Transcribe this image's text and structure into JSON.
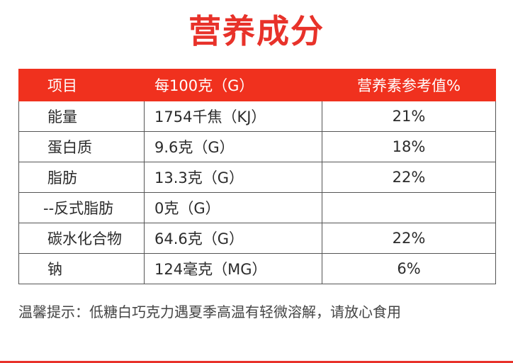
{
  "title": "营养成分",
  "table": {
    "headers": [
      "项目",
      "每100克（G）",
      "营养素参考值%"
    ],
    "rows": [
      {
        "item": "能量",
        "per100g": "1754千焦（KJ）",
        "nrv": "21%"
      },
      {
        "item": "蛋白质",
        "per100g": "9.6克（G）",
        "nrv": "18%"
      },
      {
        "item": "脂肪",
        "per100g": "13.3克（G）",
        "nrv": "22%"
      },
      {
        "item": "--反式脂肪",
        "per100g": "0克（G）",
        "nrv": ""
      },
      {
        "item": "碳水化合物",
        "per100g": "64.6克（G）",
        "nrv": "22%"
      },
      {
        "item": "钠",
        "per100g": "124毫克（MG）",
        "nrv": "6%"
      }
    ]
  },
  "notice": "温馨提示：低糖白巧克力遇夏季高温有轻微溶解，请放心食用",
  "colors": {
    "accent": "#e8322a",
    "header_bg": "#f0311e",
    "grid": "#555555"
  }
}
